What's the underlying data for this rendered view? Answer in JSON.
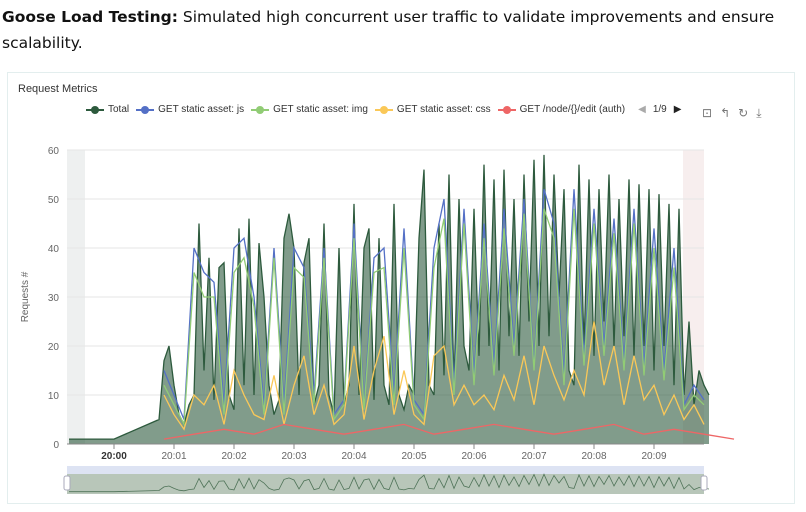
{
  "intro": {
    "bold": "Goose Load Testing:",
    "text": " Simulated high concurrent user traffic to validate improvements and ensure scalability."
  },
  "chart_data": {
    "type": "line",
    "title": "Request Metrics",
    "ylabel": "Requests #",
    "xlabel": "",
    "ylim": [
      0,
      60
    ],
    "yticks": [
      0,
      10,
      20,
      30,
      40,
      50,
      60
    ],
    "xticks": [
      "20:00",
      "20:01",
      "20:02",
      "20:03",
      "20:04",
      "20:05",
      "20:06",
      "20:07",
      "20:08",
      "20:09"
    ],
    "grid": true,
    "legend_position": "top",
    "legend_page": "1/9",
    "series": [
      {
        "name": "Total",
        "color": "#2d5a3d",
        "area": true,
        "start": "20:00:50",
        "step_seconds": 5,
        "lead": [
          [
            "19:59:15",
            1
          ],
          [
            "20:00:00",
            1
          ],
          [
            "20:00:45",
            5
          ]
        ],
        "values": [
          17,
          20,
          12,
          6,
          4,
          8,
          10,
          45,
          15,
          38,
          9,
          36,
          37,
          10,
          7,
          44,
          12,
          46,
          10,
          41,
          30,
          12,
          6,
          9,
          42,
          47,
          40,
          10,
          37,
          42,
          8,
          12,
          45,
          10,
          6,
          40,
          8,
          12,
          49,
          10,
          40,
          44,
          9,
          42,
          12,
          8,
          49,
          10,
          7,
          12,
          10,
          42,
          56,
          12,
          10,
          45,
          14,
          55,
          12,
          50,
          20,
          15,
          48,
          18,
          57,
          20,
          54,
          15,
          56,
          22,
          50,
          18,
          55,
          25,
          58,
          20,
          59,
          22,
          55,
          30,
          52,
          15,
          12,
          57,
          20,
          54,
          18,
          52,
          25,
          55,
          20,
          50,
          22,
          54,
          18,
          53,
          20,
          52,
          15,
          51,
          20,
          49,
          12,
          48,
          10,
          25,
          8,
          15,
          12,
          10
        ]
      },
      {
        "name": "GET static asset: js",
        "color": "#5470c6",
        "start": "20:00:50",
        "step_seconds": 10,
        "values": [
          15,
          10,
          5,
          40,
          35,
          33,
          8,
          40,
          42,
          30,
          8,
          40,
          8,
          40,
          36,
          10,
          40,
          6,
          9,
          45,
          8,
          38,
          40,
          10,
          44,
          9,
          6,
          40,
          50,
          12,
          48,
          14,
          45,
          16,
          48,
          20,
          50,
          16,
          52,
          45,
          14,
          52,
          18,
          48,
          20,
          46,
          17,
          48,
          16,
          44,
          15,
          40,
          8,
          12,
          9
        ]
      },
      {
        "name": "GET static asset: img",
        "color": "#91cc75",
        "start": "20:00:50",
        "step_seconds": 10,
        "values": [
          12,
          8,
          4,
          35,
          30,
          30,
          6,
          35,
          38,
          28,
          6,
          38,
          6,
          36,
          34,
          8,
          38,
          5,
          8,
          42,
          7,
          35,
          36,
          8,
          40,
          8,
          5,
          36,
          46,
          10,
          45,
          12,
          42,
          14,
          44,
          18,
          47,
          15,
          48,
          42,
          12,
          48,
          16,
          45,
          18,
          43,
          15,
          45,
          14,
          40,
          13,
          36,
          7,
          10,
          8
        ]
      },
      {
        "name": "GET static asset: css",
        "color": "#fac858",
        "start": "20:00:50",
        "step_seconds": 10,
        "values": [
          10,
          6,
          3,
          10,
          8,
          12,
          4,
          15,
          10,
          6,
          5,
          14,
          4,
          12,
          18,
          6,
          12,
          4,
          6,
          20,
          5,
          15,
          22,
          6,
          15,
          6,
          4,
          18,
          20,
          8,
          12,
          8,
          10,
          7,
          14,
          9,
          18,
          8,
          20,
          14,
          9,
          15,
          10,
          25,
          12,
          20,
          8,
          18,
          9,
          12,
          6,
          10,
          5,
          8,
          4
        ]
      },
      {
        "name": "GET /node/{}/edit (auth)",
        "color": "#ee6666",
        "start": "20:00:50",
        "step_seconds": 30,
        "values": [
          1,
          2,
          3,
          2,
          4,
          3,
          2,
          3,
          4,
          2,
          3,
          4,
          3,
          2,
          3,
          4,
          2,
          3,
          2,
          1
        ]
      }
    ]
  }
}
